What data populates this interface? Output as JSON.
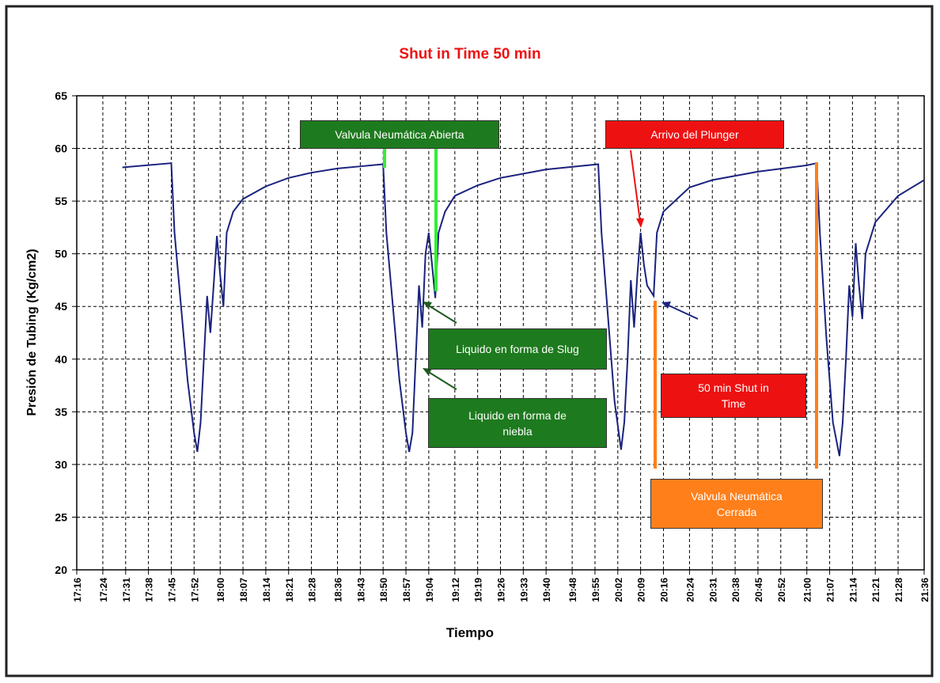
{
  "chart_data": {
    "type": "line",
    "title": "Shut in Time 50 min",
    "x_label": "Tiempo",
    "y_label": "Presión de Tubing (Kg/cm2)",
    "xlim": [
      "17:16",
      "21:36"
    ],
    "xticks": [
      "17:16",
      "17:24",
      "17:31",
      "17:38",
      "17:45",
      "17:52",
      "18:00",
      "18:07",
      "18:14",
      "18:21",
      "18:28",
      "18:36",
      "18:43",
      "18:50",
      "18:57",
      "19:04",
      "19:12",
      "19:19",
      "19:26",
      "19:33",
      "19:40",
      "19:48",
      "19:55",
      "20:02",
      "20:09",
      "20:16",
      "20:24",
      "20:31",
      "20:38",
      "20:45",
      "20:52",
      "21:00",
      "21:07",
      "21:14",
      "21:21",
      "21:28",
      "21:36"
    ],
    "ylim": [
      20,
      65
    ],
    "yticks": [
      20,
      25,
      30,
      35,
      40,
      45,
      50,
      55,
      60,
      65
    ],
    "grid": true,
    "x": [
      "17:30",
      "17:45",
      "17:46",
      "17:48",
      "17:50",
      "17:52",
      "17:53",
      "17:54",
      "17:55",
      "17:56",
      "17:57",
      "17:58",
      "17:59",
      "18:00",
      "18:01",
      "18:02",
      "18:04",
      "18:07",
      "18:14",
      "18:21",
      "18:28",
      "18:36",
      "18:43",
      "18:50",
      "18:51",
      "18:53",
      "18:55",
      "18:57",
      "18:58",
      "18:59",
      "19:00",
      "19:01",
      "19:02",
      "19:03",
      "19:04",
      "19:05",
      "19:06",
      "19:07",
      "19:09",
      "19:12",
      "19:19",
      "19:26",
      "19:40",
      "19:56",
      "19:57",
      "19:59",
      "20:01",
      "20:03",
      "20:04",
      "20:05",
      "20:06",
      "20:07",
      "20:08",
      "20:09",
      "20:10",
      "20:11",
      "20:13",
      "20:14",
      "20:16",
      "20:24",
      "20:31",
      "20:45",
      "21:00",
      "21:03",
      "21:04",
      "21:06",
      "21:08",
      "21:10",
      "21:11",
      "21:12",
      "21:13",
      "21:14",
      "21:15",
      "21:16",
      "21:17",
      "21:18",
      "21:21",
      "21:28",
      "21:36"
    ],
    "series": [
      {
        "color": "#1a237e",
        "values": [
          58.2,
          58.6,
          52,
          45,
          38,
          33,
          31.2,
          34,
          40,
          46,
          42.5,
          47,
          51.7,
          48,
          45,
          52,
          54,
          55.2,
          56.4,
          57.2,
          57.7,
          58.1,
          58.3,
          58.5,
          52,
          45,
          38,
          33,
          31.2,
          33,
          40,
          47,
          43,
          50,
          52,
          49,
          45.8,
          52,
          54,
          55.5,
          56.5,
          57.2,
          58,
          58.5,
          52,
          44,
          36,
          31.4,
          34,
          40,
          47.5,
          43,
          48,
          52,
          49,
          47,
          46,
          52,
          54,
          56.3,
          57,
          57.8,
          58.4,
          58.6,
          52,
          42,
          34,
          30.8,
          34,
          40,
          47,
          44,
          51,
          47,
          43.8,
          50,
          53,
          55.5,
          57
        ]
      }
    ],
    "annotations": [
      "Valvula Neumática Abierta",
      "Arrivo del Plunger",
      "Liquido en forma de Slug",
      "Liquido en forma de niebla",
      "50 min Shut in Time",
      "Valvula Neumática Cerrada"
    ]
  }
}
